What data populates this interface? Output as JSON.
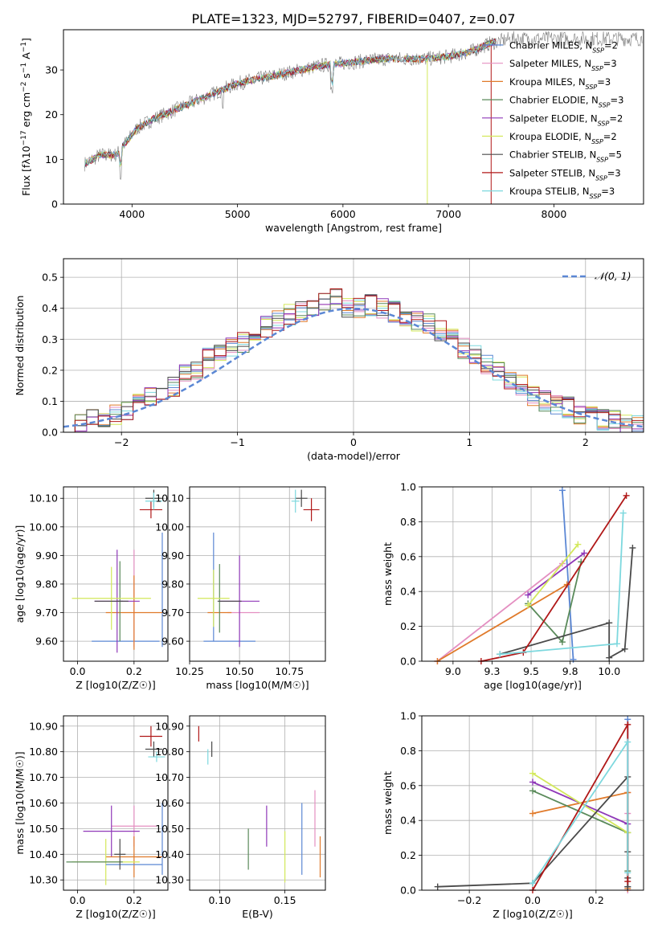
{
  "figure_title": "PLATE=1323, MJD=52797, FIBERID=0407, z=0.07",
  "colors": {
    "chabrier_miles": "#5b87d4",
    "salpeter_miles": "#e48fc1",
    "kroupa_miles": "#e07a2a",
    "chabrier_elodie": "#5a8a5a",
    "salpeter_elodie": "#8f38b8",
    "kroupa_elodie": "#d3e85a",
    "chabrier_stelib": "#4a4a4a",
    "salpeter_stelib": "#b01818",
    "kroupa_stelib": "#7dd8de",
    "normal_curve": "#5b87d4",
    "grid": "#b0b0b0"
  },
  "chart_data": [
    {
      "id": "spectrum",
      "type": "line",
      "xlabel": "wavelength [Angstrom, rest frame]",
      "ylabel": "Flux [f_λ10^-17 erg cm^-2 s^-1 A^-1]",
      "xlim": [
        3350,
        8850
      ],
      "ylim": [
        0,
        39
      ],
      "xticks": [
        4000,
        5000,
        6000,
        7000,
        8000
      ],
      "yticks": [
        0,
        10,
        20,
        30
      ],
      "legend_placement": "right",
      "legend": [
        {
          "label": "Chabrier MILES, N_SSP=2",
          "color_key": "chabrier_miles"
        },
        {
          "label": "Salpeter MILES, N_SSP=3",
          "color_key": "salpeter_miles"
        },
        {
          "label": "Kroupa MILES, N_SSP=3",
          "color_key": "kroupa_miles"
        },
        {
          "label": "Chabrier ELODIE, N_SSP=3",
          "color_key": "chabrier_elodie"
        },
        {
          "label": "Salpeter ELODIE, N_SSP=2",
          "color_key": "salpeter_elodie"
        },
        {
          "label": "Kroupa ELODIE, N_SSP=2",
          "color_key": "kroupa_elodie"
        },
        {
          "label": "Chabrier STELIB, N_SSP=5",
          "color_key": "chabrier_stelib"
        },
        {
          "label": "Salpeter STELIB, N_SSP=3",
          "color_key": "salpeter_stelib"
        },
        {
          "label": "Kroupa STELIB, N_SSP=3",
          "color_key": "kroupa_stelib"
        }
      ],
      "continuum": {
        "x": [
          3550,
          3700,
          3850,
          3950,
          4050,
          4200,
          4400,
          4600,
          4800,
          5000,
          5200,
          5400,
          5600,
          5800,
          6000,
          6200,
          6400,
          6600,
          6800,
          7000,
          7200,
          7400,
          7600
        ],
        "y": [
          9,
          11,
          11,
          14,
          17,
          19,
          21,
          23,
          25,
          27,
          28,
          29,
          30,
          31,
          31.5,
          32,
          32.5,
          32.5,
          32.5,
          33,
          34,
          36,
          37
        ]
      },
      "observed_color": "#808080"
    },
    {
      "id": "residuals",
      "type": "line",
      "xlabel": "(data-model)/error",
      "ylabel": "Normed distribution",
      "xlim": [
        -2.5,
        2.5
      ],
      "ylim": [
        0,
        0.56
      ],
      "xticks": [
        -2,
        -1,
        0,
        1,
        2
      ],
      "yticks": [
        0.0,
        0.1,
        0.2,
        0.3,
        0.4,
        0.5
      ],
      "legend_placement": "top-right",
      "legend": [
        {
          "label": "𝒩(0, 1)",
          "color_key": "normal_curve"
        }
      ],
      "bin_width": 0.1,
      "histogram_envelope": {
        "x": [
          -2.45,
          -2.35,
          -2.25,
          -2.15,
          -2.05,
          -1.95,
          -1.85,
          -1.75,
          -1.65,
          -1.55,
          -1.45,
          -1.35,
          -1.25,
          -1.15,
          -1.05,
          -0.95,
          -0.85,
          -0.75,
          -0.65,
          -0.55,
          -0.45,
          -0.35,
          -0.25,
          -0.15,
          -0.05,
          0.05,
          0.15,
          0.25,
          0.35,
          0.45,
          0.55,
          0.65,
          0.75,
          0.85,
          0.95,
          1.05,
          1.15,
          1.25,
          1.35,
          1.45,
          1.55,
          1.65,
          1.75,
          1.85,
          1.95,
          2.05,
          2.15,
          2.25,
          2.35,
          2.45
        ],
        "y": [
          0.025,
          0.03,
          0.04,
          0.05,
          0.06,
          0.07,
          0.09,
          0.11,
          0.13,
          0.15,
          0.19,
          0.2,
          0.24,
          0.26,
          0.28,
          0.29,
          0.32,
          0.34,
          0.36,
          0.38,
          0.39,
          0.4,
          0.42,
          0.43,
          0.4,
          0.4,
          0.41,
          0.4,
          0.39,
          0.37,
          0.36,
          0.35,
          0.33,
          0.3,
          0.27,
          0.25,
          0.22,
          0.2,
          0.17,
          0.15,
          0.12,
          0.1,
          0.09,
          0.08,
          0.06,
          0.05,
          0.04,
          0.035,
          0.025,
          0.02
        ]
      }
    },
    {
      "id": "age_vs_Z",
      "type": "scatter",
      "xlabel": "Z [log10(Z/Z☉)]",
      "ylabel": "age [log10(age/yr)]",
      "xlim": [
        -0.05,
        0.32
      ],
      "ylim": [
        9.53,
        10.14
      ],
      "xticks": [
        0.0,
        0.2
      ],
      "yticks": [
        9.6,
        9.7,
        9.8,
        9.9,
        10.0,
        10.1
      ],
      "points": [
        {
          "color_key": "chabrier_stelib",
          "x": 0.27,
          "xerr": 0.03,
          "y": 10.1,
          "yerr": 0.03
        },
        {
          "color_key": "salpeter_stelib",
          "x": 0.26,
          "xerr": 0.04,
          "y": 10.06,
          "yerr": 0.03
        },
        {
          "color_key": "kroupa_stelib",
          "x": 0.27,
          "xerr": 0.03,
          "y": 10.09,
          "yerr": 0.03
        },
        {
          "color_key": "chabrier_miles",
          "x": 0.17,
          "xerr": 0.12,
          "y": 9.6,
          "yerr": 0.0
        },
        {
          "color_key": "chabrier_miles",
          "x": 0.3,
          "xerr": 0.0,
          "y": 9.78,
          "yerr": 0.2
        },
        {
          "color_key": "salpeter_miles",
          "x": 0.2,
          "xerr": 0.0,
          "y": 9.75,
          "yerr": 0.17
        },
        {
          "color_key": "kroupa_miles",
          "x": 0.2,
          "xerr": 0.1,
          "y": 9.7,
          "yerr": 0.13
        },
        {
          "color_key": "chabrier_elodie",
          "x": 0.15,
          "xerr": 0.01,
          "y": 9.74,
          "yerr": 0.14
        },
        {
          "color_key": "salpeter_elodie",
          "x": 0.14,
          "xerr": 0.08,
          "y": 9.74,
          "yerr": 0.18
        },
        {
          "color_key": "kroupa_elodie",
          "x": 0.12,
          "xerr": 0.14,
          "y": 9.75,
          "yerr": 0.11
        },
        {
          "color_key": "chabrier_stelib",
          "x": 0.12,
          "xerr": 0.06,
          "y": 9.74,
          "yerr": 0.0
        }
      ]
    },
    {
      "id": "age_vs_mass",
      "type": "scatter",
      "xlabel": "mass [log10(M/M☉)]",
      "ylabel": "",
      "xlim": [
        10.25,
        10.93
      ],
      "ylim": [
        9.53,
        10.14
      ],
      "xticks": [
        10.25,
        10.5,
        10.75
      ],
      "yticks": [
        9.6,
        9.7,
        9.8,
        9.9,
        10.0,
        10.1
      ],
      "points": [
        {
          "color_key": "chabrier_stelib",
          "x": 10.81,
          "xerr": 0.03,
          "y": 10.1,
          "yerr": 0.03
        },
        {
          "color_key": "salpeter_stelib",
          "x": 10.86,
          "xerr": 0.04,
          "y": 10.06,
          "yerr": 0.04
        },
        {
          "color_key": "kroupa_stelib",
          "x": 10.78,
          "xerr": 0.02,
          "y": 10.09,
          "yerr": 0.04
        },
        {
          "color_key": "chabrier_miles",
          "x": 10.45,
          "xerr": 0.13,
          "y": 9.6,
          "yerr": 0.0
        },
        {
          "color_key": "chabrier_miles",
          "x": 10.37,
          "xerr": 0.0,
          "y": 9.79,
          "yerr": 0.19
        },
        {
          "color_key": "salpeter_miles",
          "x": 10.52,
          "xerr": 0.08,
          "y": 9.7,
          "yerr": 0.0
        },
        {
          "color_key": "kroupa_miles",
          "x": 10.4,
          "xerr": 0.06,
          "y": 9.7,
          "yerr": 0.0
        },
        {
          "color_key": "chabrier_elodie",
          "x": 10.4,
          "xerr": 0.0,
          "y": 9.75,
          "yerr": 0.12
        },
        {
          "color_key": "salpeter_elodie",
          "x": 10.5,
          "xerr": 0.1,
          "y": 9.74,
          "yerr": 0.16
        },
        {
          "color_key": "kroupa_elodie",
          "x": 10.37,
          "xerr": 0.08,
          "y": 9.75,
          "yerr": 0.1
        },
        {
          "color_key": "chabrier_stelib",
          "x": 10.45,
          "xerr": 0.06,
          "y": 9.74,
          "yerr": 0.0
        }
      ]
    },
    {
      "id": "mass_weight_vs_age",
      "type": "line",
      "xlabel": "age [log10(age/yr)]",
      "ylabel": "mass weight",
      "xlim": [
        8.8,
        10.22
      ],
      "ylim": [
        0,
        1
      ],
      "xticks": [
        9.0,
        9.25,
        9.5,
        9.75,
        10.0
      ],
      "yticks": [
        0.0,
        0.2,
        0.4,
        0.6,
        0.8,
        1.0
      ],
      "series": [
        {
          "color_key": "chabrier_miles",
          "x": [
            9.7,
            9.77
          ],
          "y": [
            0.98,
            0.01
          ]
        },
        {
          "color_key": "salpeter_miles",
          "x": [
            8.9,
            9.7
          ],
          "y": [
            0.0,
            0.56
          ]
        },
        {
          "color_key": "kroupa_miles",
          "x": [
            8.9,
            9.73
          ],
          "y": [
            0.0,
            0.44
          ]
        },
        {
          "color_key": "chabrier_elodie",
          "x": [
            9.48,
            9.7,
            9.82
          ],
          "y": [
            0.33,
            0.11,
            0.57
          ]
        },
        {
          "color_key": "salpeter_elodie",
          "x": [
            9.48,
            9.84
          ],
          "y": [
            0.38,
            0.62
          ]
        },
        {
          "color_key": "kroupa_elodie",
          "x": [
            9.48,
            9.8
          ],
          "y": [
            0.32,
            0.67
          ]
        },
        {
          "color_key": "chabrier_stelib",
          "x": [
            9.3,
            10.0,
            10.0,
            10.1,
            10.15
          ],
          "y": [
            0.04,
            0.22,
            0.02,
            0.07,
            0.65
          ]
        },
        {
          "color_key": "salpeter_stelib",
          "x": [
            9.18,
            9.45,
            10.11
          ],
          "y": [
            0.0,
            0.05,
            0.95
          ]
        },
        {
          "color_key": "kroupa_stelib",
          "x": [
            9.3,
            10.05,
            10.09
          ],
          "y": [
            0.04,
            0.1,
            0.85
          ]
        }
      ]
    },
    {
      "id": "mass_vs_Z",
      "type": "scatter",
      "xlabel": "Z [log10(Z/Z☉)]",
      "ylabel": "mass [log10(M/M☉)]",
      "xlim": [
        -0.05,
        0.32
      ],
      "ylim": [
        10.26,
        10.94
      ],
      "xticks": [
        0.0,
        0.2
      ],
      "yticks": [
        10.3,
        10.4,
        10.5,
        10.6,
        10.7,
        10.8,
        10.9
      ],
      "points": [
        {
          "color_key": "salpeter_stelib",
          "x": 0.26,
          "xerr": 0.04,
          "y": 10.86,
          "yerr": 0.04
        },
        {
          "color_key": "chabrier_stelib",
          "x": 0.27,
          "xerr": 0.03,
          "y": 10.81,
          "yerr": 0.03
        },
        {
          "color_key": "kroupa_stelib",
          "x": 0.28,
          "xerr": 0.03,
          "y": 10.78,
          "yerr": 0.02
        },
        {
          "color_key": "salpeter_miles",
          "x": 0.2,
          "xerr": 0.08,
          "y": 10.51,
          "yerr": 0.08
        },
        {
          "color_key": "salpeter_elodie",
          "x": 0.12,
          "xerr": 0.1,
          "y": 10.49,
          "yerr": 0.1
        },
        {
          "color_key": "chabrier_miles",
          "x": 0.3,
          "xerr": 0.0,
          "y": 10.46,
          "yerr": 0.14
        },
        {
          "color_key": "kroupa_miles",
          "x": 0.2,
          "xerr": 0.1,
          "y": 10.39,
          "yerr": 0.08
        },
        {
          "color_key": "kroupa_elodie",
          "x": 0.1,
          "xerr": 0.12,
          "y": 10.37,
          "yerr": 0.09
        },
        {
          "color_key": "chabrier_elodie",
          "x": 0.06,
          "xerr": 0.1,
          "y": 10.37,
          "yerr": 0.0
        },
        {
          "color_key": "chabrier_miles",
          "x": 0.2,
          "xerr": 0.1,
          "y": 10.36,
          "yerr": 0.0
        },
        {
          "color_key": "chabrier_stelib",
          "x": 0.15,
          "xerr": 0.02,
          "y": 10.4,
          "yerr": 0.06
        }
      ]
    },
    {
      "id": "mass_vs_EBV",
      "type": "scatter",
      "xlabel": "E(B-V)",
      "ylabel": "",
      "xlim": [
        0.077,
        0.181
      ],
      "ylim": [
        10.26,
        10.94
      ],
      "xticks": [
        0.1,
        0.15
      ],
      "yticks": [
        10.3,
        10.4,
        10.5,
        10.6,
        10.7,
        10.8,
        10.9
      ],
      "points": [
        {
          "color_key": "salpeter_stelib",
          "x": 0.084,
          "xerr": 0.0,
          "y": 10.87,
          "yerr": 0.03
        },
        {
          "color_key": "chabrier_stelib",
          "x": 0.094,
          "xerr": 0.0,
          "y": 10.81,
          "yerr": 0.03
        },
        {
          "color_key": "kroupa_stelib",
          "x": 0.091,
          "xerr": 0.0,
          "y": 10.78,
          "yerr": 0.03
        },
        {
          "color_key": "salpeter_miles",
          "x": 0.173,
          "xerr": 0.0,
          "y": 10.54,
          "yerr": 0.11
        },
        {
          "color_key": "salpeter_elodie",
          "x": 0.136,
          "xerr": 0.0,
          "y": 10.51,
          "yerr": 0.08
        },
        {
          "color_key": "chabrier_miles",
          "x": 0.163,
          "xerr": 0.0,
          "y": 10.46,
          "yerr": 0.14
        },
        {
          "color_key": "chabrier_elodie",
          "x": 0.122,
          "xerr": 0.0,
          "y": 10.42,
          "yerr": 0.08
        },
        {
          "color_key": "kroupa_elodie",
          "x": 0.15,
          "xerr": 0.0,
          "y": 10.39,
          "yerr": 0.1
        },
        {
          "color_key": "kroupa_miles",
          "x": 0.177,
          "xerr": 0.0,
          "y": 10.39,
          "yerr": 0.08
        }
      ]
    },
    {
      "id": "mass_weight_vs_Z",
      "type": "line",
      "xlabel": "Z [log10(Z/Z☉)]",
      "ylabel": "mass weight",
      "xlim": [
        -0.35,
        0.35
      ],
      "ylim": [
        0,
        1
      ],
      "xticks": [
        -0.2,
        0.0,
        0.2
      ],
      "yticks": [
        0.0,
        0.2,
        0.4,
        0.6,
        0.8,
        1.0
      ],
      "series": [
        {
          "color_key": "chabrier_miles",
          "x": [
            0.3,
            0.3
          ],
          "y": [
            0.98,
            0.02
          ]
        },
        {
          "color_key": "salpeter_miles",
          "x": [
            0.3,
            0.3,
            0.3
          ],
          "y": [
            0.56,
            0.44,
            0.0
          ]
        },
        {
          "color_key": "kroupa_miles",
          "x": [
            0.0,
            0.3,
            0.3
          ],
          "y": [
            0.44,
            0.56,
            0.01
          ]
        },
        {
          "color_key": "chabrier_elodie",
          "x": [
            0.0,
            0.3,
            0.3
          ],
          "y": [
            0.57,
            0.33,
            0.11
          ]
        },
        {
          "color_key": "salpeter_elodie",
          "x": [
            0.0,
            0.3
          ],
          "y": [
            0.62,
            0.38
          ]
        },
        {
          "color_key": "kroupa_elodie",
          "x": [
            0.0,
            0.3
          ],
          "y": [
            0.67,
            0.33
          ]
        },
        {
          "color_key": "chabrier_stelib",
          "x": [
            -0.3,
            0.0,
            0.3,
            0.3,
            0.3,
            0.3
          ],
          "y": [
            0.02,
            0.04,
            0.65,
            0.22,
            0.07,
            0.02
          ]
        },
        {
          "color_key": "salpeter_stelib",
          "x": [
            0.0,
            0.3,
            0.3
          ],
          "y": [
            0.0,
            0.95,
            0.05
          ]
        },
        {
          "color_key": "kroupa_stelib",
          "x": [
            0.0,
            0.3,
            0.3
          ],
          "y": [
            0.04,
            0.85,
            0.1
          ]
        }
      ]
    }
  ]
}
